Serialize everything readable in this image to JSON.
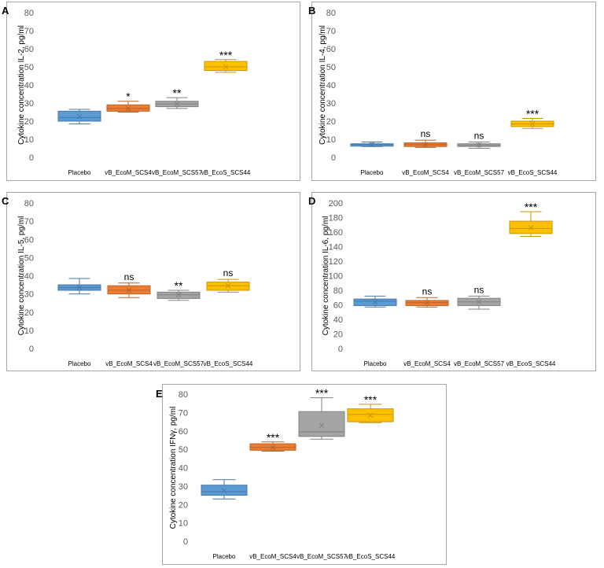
{
  "colors": {
    "placebo": "#5b9bd5",
    "scs4": "#ed7d31",
    "scs57": "#a5a5a5",
    "scs44": "#ffc000",
    "axis_text": "#595959",
    "annotation": "#000000"
  },
  "chart_data": [
    {
      "type": "boxplot",
      "panel": "A",
      "ylabel": "Cytokine concentration IL-2, pg/ml",
      "ylim": [
        0,
        80
      ],
      "yticks": [
        "0",
        "10",
        "20",
        "30",
        "40",
        "50",
        "60",
        "70",
        "80"
      ],
      "categories": [
        "Placebo",
        "vB_EcoM_SCS4",
        "vB_EcoM_SCS57",
        "vB_EcoS_SCS44"
      ],
      "boxes": [
        {
          "min": 18.5,
          "q1": 20,
          "median": 22,
          "q3": 25.5,
          "max": 26.5,
          "mean": 22.5
        },
        {
          "min": 25,
          "q1": 25.5,
          "median": 27,
          "q3": 29,
          "max": 31,
          "mean": 27
        },
        {
          "min": 27,
          "q1": 28,
          "median": 29.5,
          "q3": 31,
          "max": 33,
          "mean": 29.5
        },
        {
          "min": 47,
          "q1": 48,
          "median": 50,
          "q3": 53,
          "max": 54,
          "mean": 50
        }
      ],
      "annotations": [
        "",
        "*",
        "**",
        "***"
      ]
    },
    {
      "type": "boxplot",
      "panel": "B",
      "ylabel": "Cytokine concentration IL-4, pg/ml",
      "ylim": [
        0,
        80
      ],
      "yticks": [
        "0",
        "10",
        "20",
        "30",
        "40",
        "50",
        "60",
        "70",
        "80"
      ],
      "categories": [
        "Placebo",
        "vB_EcoM_SCS4",
        "vB_EcoM_SCS57",
        "vB_EcoS_SCS44"
      ],
      "boxes": [
        {
          "min": 6,
          "q1": 6.2,
          "median": 7,
          "q3": 7.5,
          "max": 8.5,
          "mean": 7
        },
        {
          "min": 5.5,
          "q1": 6,
          "median": 7,
          "q3": 8,
          "max": 9.5,
          "mean": 7
        },
        {
          "min": 5,
          "q1": 6,
          "median": 6.8,
          "q3": 7.5,
          "max": 8.5,
          "mean": 6.8
        },
        {
          "min": 16,
          "q1": 17,
          "median": 18.5,
          "q3": 20,
          "max": 21.5,
          "mean": 18.5
        }
      ],
      "annotations": [
        "",
        "ns",
        "ns",
        "***"
      ]
    },
    {
      "type": "boxplot",
      "panel": "C",
      "ylabel": "Cytokine concentration IL-5, pg/ml",
      "ylim": [
        0,
        80
      ],
      "yticks": [
        "0",
        "10",
        "20",
        "30",
        "40",
        "50",
        "60",
        "70",
        "80"
      ],
      "categories": [
        "Placebo",
        "vB_EcoM_SCS4",
        "vB_EcoM_SCS57",
        "vB_EcoS_SCS44"
      ],
      "boxes": [
        {
          "min": 30,
          "q1": 32,
          "median": 33.5,
          "q3": 35,
          "max": 38.5,
          "mean": 33.5
        },
        {
          "min": 28,
          "q1": 30,
          "median": 32,
          "q3": 34.5,
          "max": 36,
          "mean": 32
        },
        {
          "min": 26.5,
          "q1": 27.5,
          "median": 29.5,
          "q3": 31,
          "max": 32,
          "mean": 29.5
        },
        {
          "min": 31,
          "q1": 32,
          "median": 34.5,
          "q3": 36.5,
          "max": 38,
          "mean": 34.5
        }
      ],
      "annotations": [
        "",
        "ns",
        "**",
        "ns"
      ]
    },
    {
      "type": "boxplot",
      "panel": "D",
      "ylabel": "Cytokine concentration IL-6, pg/ml",
      "ylim": [
        0,
        200
      ],
      "yticks": [
        "0",
        "20",
        "40",
        "60",
        "80",
        "100",
        "120",
        "140",
        "160",
        "180",
        "200"
      ],
      "categories": [
        "Placebo",
        "vB_EcoM_SCS4",
        "vB_EcoM_SCS57",
        "vB_EcoS_SCS44"
      ],
      "boxes": [
        {
          "min": 57,
          "q1": 59,
          "median": 65,
          "q3": 68,
          "max": 72,
          "mean": 64
        },
        {
          "min": 57,
          "q1": 59,
          "median": 63,
          "q3": 66,
          "max": 70,
          "mean": 63
        },
        {
          "min": 54,
          "q1": 59,
          "median": 64,
          "q3": 69,
          "max": 72,
          "mean": 64
        },
        {
          "min": 154,
          "q1": 158,
          "median": 165,
          "q3": 175,
          "max": 188,
          "mean": 166
        }
      ],
      "annotations": [
        "",
        "ns",
        "ns",
        "***"
      ]
    },
    {
      "type": "boxplot",
      "panel": "E",
      "ylabel": "Cytokine concentration IFNγ, pg/ml",
      "ylim": [
        0,
        80
      ],
      "yticks": [
        "0",
        "10",
        "20",
        "30",
        "40",
        "50",
        "60",
        "70",
        "80"
      ],
      "categories": [
        "Placebo",
        "vB_EcoM_SCS4",
        "vB_EcoM_SCS57",
        "vB_EcoS_SCS44"
      ],
      "boxes": [
        {
          "min": 23,
          "q1": 25,
          "median": 27,
          "q3": 30.5,
          "max": 33.5,
          "mean": 27.5
        },
        {
          "min": 49,
          "q1": 49.5,
          "median": 51,
          "q3": 53,
          "max": 54,
          "mean": 51
        },
        {
          "min": 55.5,
          "q1": 57,
          "median": 59.5,
          "q3": 70.5,
          "max": 78,
          "mean": 63
        },
        {
          "min": 64.5,
          "q1": 65,
          "median": 69,
          "q3": 72,
          "max": 74.5,
          "mean": 68.5
        }
      ],
      "annotations": [
        "",
        "***",
        "***",
        "***"
      ]
    }
  ]
}
